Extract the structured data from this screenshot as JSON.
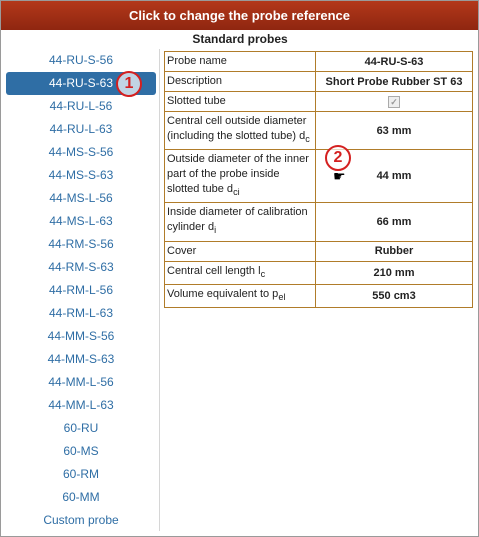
{
  "header": {
    "title": "Click to change the probe reference"
  },
  "sidebar": {
    "items": [
      {
        "label": "44-RU-S-56"
      },
      {
        "label": "44-RU-S-63"
      },
      {
        "label": "44-RU-L-56"
      },
      {
        "label": "44-RU-L-63"
      },
      {
        "label": "44-MS-S-56"
      },
      {
        "label": "44-MS-S-63"
      },
      {
        "label": "44-MS-L-56"
      },
      {
        "label": "44-MS-L-63"
      },
      {
        "label": "44-RM-S-56"
      },
      {
        "label": "44-RM-S-63"
      },
      {
        "label": "44-RM-L-56"
      },
      {
        "label": "44-RM-L-63"
      },
      {
        "label": "44-MM-S-56"
      },
      {
        "label": "44-MM-S-63"
      },
      {
        "label": "44-MM-L-56"
      },
      {
        "label": "44-MM-L-63"
      },
      {
        "label": "60-RU"
      },
      {
        "label": "60-MS"
      },
      {
        "label": "60-RM"
      },
      {
        "label": "60-MM"
      },
      {
        "label": "Custom probe"
      }
    ],
    "selected_index": 1
  },
  "panel": {
    "heading": "Standard probes",
    "rows": {
      "probe_name": {
        "key": "Probe name",
        "value": "44-RU-S-63"
      },
      "description": {
        "key": "Description",
        "value": "Short Probe Rubber ST 63"
      },
      "slotted": {
        "key": "Slotted tube",
        "checked": true
      },
      "dc": {
        "key": "Central cell outside diameter (including the slotted tube) d",
        "sub": "c",
        "value": "63 mm"
      },
      "dci": {
        "key": "Outside diameter of the inner part of the probe inside slotted tube d",
        "sub": "ci",
        "value": "44 mm"
      },
      "di": {
        "key": "Inside diameter of calibration cylinder d",
        "sub": "i",
        "value": "66 mm"
      },
      "cover": {
        "key": "Cover",
        "value": "Rubber"
      },
      "lc": {
        "key": "Central cell length l",
        "sub": "c",
        "value": "210 mm"
      },
      "vol": {
        "key": "Volume equivalent to p",
        "sub": "el",
        "value": "550 cm3"
      }
    }
  },
  "annotations": {
    "badge1": "1",
    "badge2": "2"
  }
}
